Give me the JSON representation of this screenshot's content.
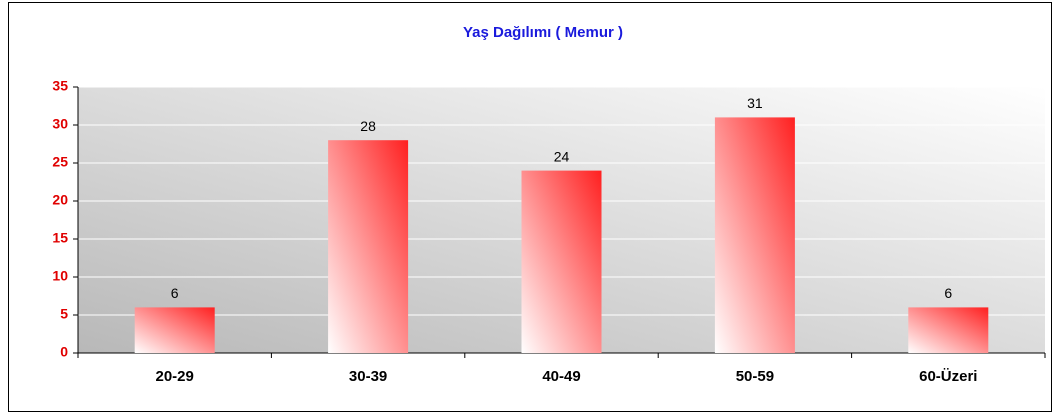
{
  "chart_data": {
    "type": "bar",
    "title": "Yaş Dağılımı ( Memur )",
    "categories": [
      "20-29",
      "30-39",
      "40-49",
      "50-59",
      "60-Üzeri"
    ],
    "values": [
      6,
      28,
      24,
      31,
      6
    ],
    "color": "#ff2020",
    "ylim": [
      0,
      35
    ],
    "yticks": [
      0,
      5,
      10,
      15,
      20,
      25,
      30,
      35
    ],
    "grid": true
  }
}
